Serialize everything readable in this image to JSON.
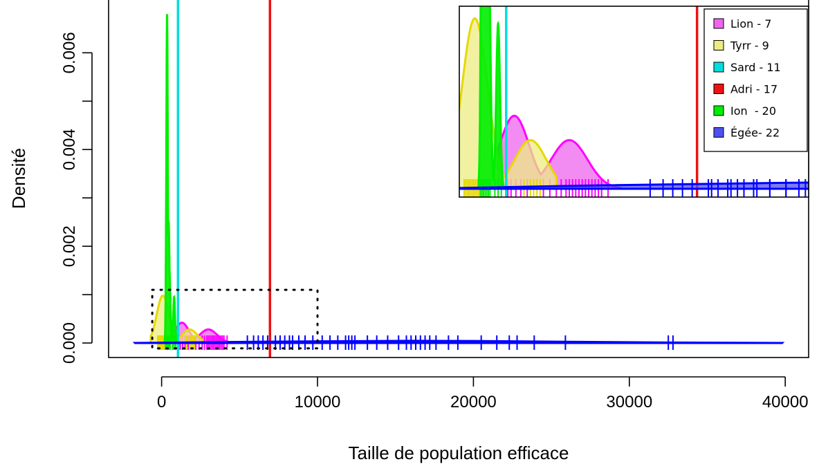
{
  "chart_data": {
    "type": "area",
    "xlabel": "Taille de population efficace",
    "ylabel": "Densité",
    "xlim": [
      -3400,
      41500
    ],
    "ylim": [
      -0.0003,
      0.00712
    ],
    "x_ticks": [
      0,
      10000,
      20000,
      30000,
      40000
    ],
    "x_tick_labels": [
      "0",
      "10000",
      "20000",
      "30000",
      "40000"
    ],
    "y_ticks": [
      0.0,
      0.002,
      0.004,
      0.006
    ],
    "y_tick_labels": [
      "0.000",
      "0.002",
      "0.004",
      "0.006"
    ],
    "grid": false,
    "legend_position": "top-right",
    "series": [
      {
        "name": "Lion - 7",
        "color": "#ff00ff",
        "fill": "#ee66ee",
        "peaks": [
          {
            "x": 1300,
            "y": 0.00042
          },
          {
            "x": 3000,
            "y": 0.00028
          }
        ],
        "x_range": [
          800,
          4600
        ],
        "rug": [
          1100,
          1200,
          1350,
          1500,
          1700,
          2200,
          2400,
          2600,
          2750,
          2900,
          3000,
          3100,
          3200,
          3300,
          3400,
          3500,
          3600,
          3700,
          3800,
          3900,
          4000,
          4200
        ]
      },
      {
        "name": "Tyrr - 9",
        "color": "#e6d800",
        "fill": "#ecec82",
        "peaks": [
          {
            "x": 80,
            "y": 0.00098
          },
          {
            "x": 1800,
            "y": 0.00028
          }
        ],
        "x_range": [
          -700,
          2600
        ],
        "rug": [
          -250,
          -200,
          -150,
          -100,
          -50,
          0,
          50,
          100,
          150,
          200,
          250,
          300,
          1600,
          1800,
          1900,
          2000,
          2100
        ]
      },
      {
        "name": "Sard - 11",
        "color": "#00dddd",
        "fill": "#00dddd",
        "vline": 1050
      },
      {
        "name": "Adri - 17",
        "color": "#ee1111",
        "fill": "#ee1111",
        "vline": 6950
      },
      {
        "name": "Ion  - 20",
        "color": "#00ee00",
        "fill": "#00ee00",
        "peaks": [
          {
            "x": 350,
            "y": 0.0068
          },
          {
            "x": 450,
            "y": 0.0025
          },
          {
            "x": 500,
            "y": 0.0015
          },
          {
            "x": 800,
            "y": 0.00095
          }
        ],
        "x_range": [
          200,
          1000
        ],
        "rug": [
          250,
          300,
          350,
          400,
          450,
          500,
          550,
          700,
          800,
          900
        ]
      },
      {
        "name": "Égée- 22",
        "color": "#0000ff",
        "fill": "#5050ee",
        "curve": [
          [
            -1700,
            0.0
          ],
          [
            4000,
            2e-05
          ],
          [
            10000,
            3.5e-05
          ],
          [
            16000,
            4.5e-05
          ],
          [
            20000,
            4.2e-05
          ],
          [
            26000,
            2.5e-05
          ],
          [
            32000,
            1.2e-05
          ],
          [
            39800,
            0.0
          ]
        ],
        "rug": [
          5500,
          5900,
          6200,
          6500,
          6800,
          7300,
          7600,
          7900,
          8200,
          8400,
          8800,
          9200,
          9700,
          10300,
          10800,
          11300,
          11800,
          12000,
          12200,
          12400,
          13200,
          13800,
          14500,
          15200,
          15700,
          16000,
          16300,
          16600,
          16900,
          17200,
          17600,
          18400,
          19000,
          20500,
          21500,
          22300,
          22800,
          23900,
          25900,
          32500,
          32800
        ]
      }
    ],
    "zoom_box": {
      "x": [
        -600,
        10000
      ],
      "y": [
        -0.00011,
        0.0011
      ]
    },
    "inset": {
      "xlim": [
        -400,
        10400
      ],
      "ylim": [
        0.0,
        0.00105
      ],
      "inset_extra_rug_egee": [
        7400,
        8000,
        8400,
        8700,
        9200,
        9700,
        10100
      ]
    }
  }
}
